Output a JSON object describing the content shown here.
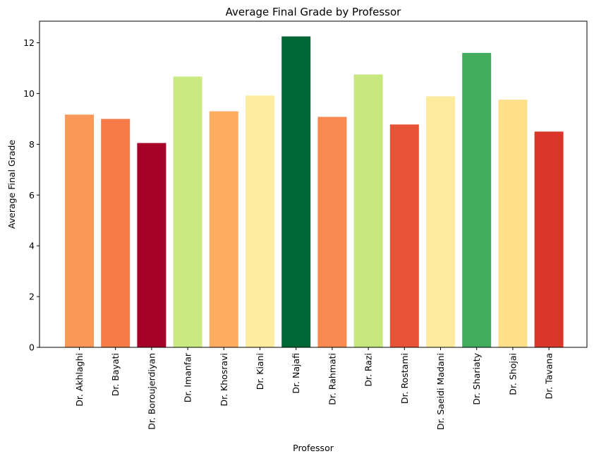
{
  "chart_data": {
    "type": "bar",
    "title": "Average Final Grade by Professor",
    "xlabel": "Professor",
    "ylabel": "Average Final Grade",
    "ylim": [
      0,
      12.85
    ],
    "yticks": [
      0,
      2,
      4,
      6,
      8,
      10,
      12
    ],
    "grid": false,
    "legend": "none",
    "categories": [
      "Dr. Akhlaghi",
      "Dr. Bayati",
      "Dr. Boroujerdiyan",
      "Dr. Imanfar",
      "Dr. Khosravi",
      "Dr. Kiani",
      "Dr. Najafi",
      "Dr. Rahmati",
      "Dr. Razi",
      "Dr. Rostami",
      "Dr. Saeidi Madani",
      "Dr. Shariaty",
      "Dr. Shojai",
      "Dr. Tavana"
    ],
    "values": [
      9.17,
      9.0,
      8.05,
      10.67,
      9.3,
      9.92,
      12.25,
      9.08,
      10.75,
      8.78,
      9.89,
      11.6,
      9.76,
      8.5
    ],
    "colors": [
      "#f99858",
      "#f67c4a",
      "#a50026",
      "#cbe982",
      "#fdad60",
      "#feeda1",
      "#006837",
      "#f88950",
      "#c7e77f",
      "#e75337",
      "#feeb9d",
      "#41ac5b",
      "#fee08b",
      "#da362a"
    ]
  }
}
